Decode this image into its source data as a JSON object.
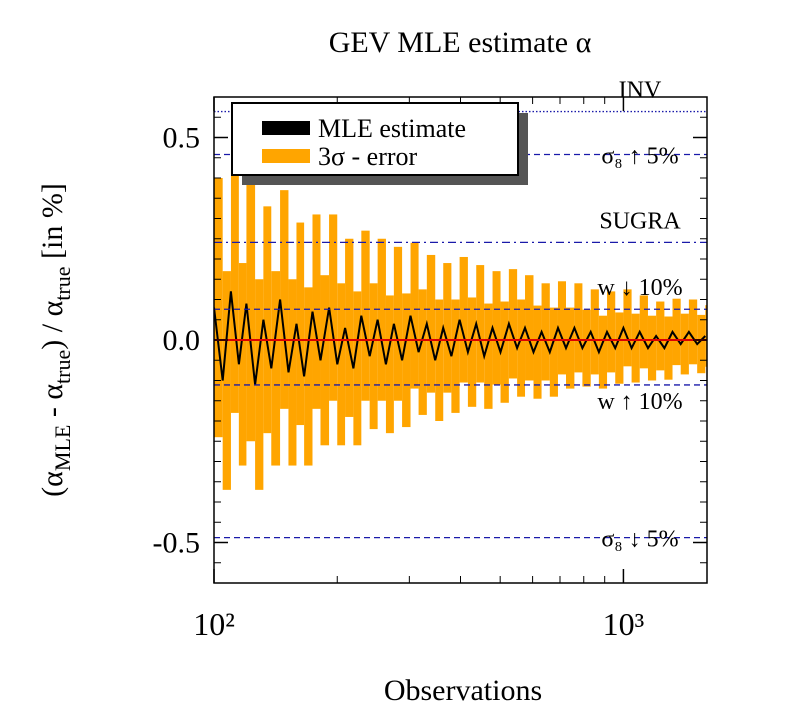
{
  "chart_data": {
    "type": "errorbar",
    "title": "GEV MLE estimate α",
    "xlabel": "Observations",
    "ylabel": [
      {
        "text": "(α"
      },
      {
        "text": "MLE",
        "sub": true
      },
      {
        "text": " - α"
      },
      {
        "text": "true",
        "sub": true
      },
      {
        "text": ") / α"
      },
      {
        "text": "true",
        "sub": true
      },
      {
        "text": " [in %]"
      }
    ],
    "xscale": "log",
    "xlim": [
      100,
      1600
    ],
    "xticks": [
      {
        "value": 100,
        "label": "10²"
      },
      {
        "value": 1000,
        "label": "10³"
      }
    ],
    "xminorticks": [
      200,
      300,
      400,
      500,
      600,
      700,
      800,
      900
    ],
    "ylim": [
      -0.6,
      0.6
    ],
    "yticks": [
      {
        "value": -0.5,
        "label": "-0.5"
      },
      {
        "value": 0,
        "label": "0.0"
      },
      {
        "value": 0.5,
        "label": "0.5"
      }
    ],
    "yminorticks": [
      -0.55,
      -0.45,
      -0.4,
      -0.35,
      -0.3,
      -0.25,
      -0.2,
      -0.15,
      -0.1,
      -0.05,
      0.05,
      0.1,
      0.15,
      0.2,
      0.25,
      0.3,
      0.35,
      0.4,
      0.45,
      0.55
    ],
    "legend": "upper left",
    "x": [
      100,
      105,
      110,
      115,
      120,
      126,
      132,
      138,
      145,
      152,
      159,
      166,
      174,
      182,
      191,
      200,
      209,
      219,
      229,
      240,
      251,
      263,
      275,
      288,
      302,
      316,
      331,
      347,
      363,
      380,
      398,
      417,
      437,
      457,
      479,
      501,
      525,
      550,
      575,
      603,
      631,
      661,
      692,
      724,
      759,
      794,
      832,
      871,
      912,
      955,
      1000,
      1047,
      1096,
      1148,
      1202,
      1259,
      1318,
      1380,
      1445,
      1514,
      1585
    ],
    "series": [
      {
        "name": "MLE estimate",
        "color": "#000000",
        "values": [
          0.08,
          -0.1,
          0.12,
          -0.06,
          0.09,
          -0.11,
          0.05,
          -0.07,
          0.1,
          -0.08,
          0.04,
          -0.09,
          0.07,
          -0.05,
          0.08,
          -0.06,
          0.03,
          -0.07,
          0.06,
          -0.04,
          0.05,
          -0.06,
          0.04,
          -0.05,
          0.06,
          -0.03,
          0.04,
          -0.05,
          0.03,
          -0.04,
          0.05,
          -0.03,
          0.04,
          -0.04,
          0.03,
          -0.03,
          0.04,
          -0.02,
          0.03,
          -0.03,
          0.02,
          -0.03,
          0.03,
          -0.02,
          0.03,
          -0.02,
          0.02,
          -0.03,
          0.02,
          -0.02,
          0.03,
          -0.02,
          0.02,
          -0.02,
          0.01,
          -0.02,
          0.02,
          -0.01,
          0.02,
          -0.01,
          0.01
        ]
      },
      {
        "name": "3σ - error",
        "color": "#ffa500",
        "values": [
          0.32,
          0.27,
          0.3,
          0.25,
          0.34,
          0.26,
          0.28,
          0.24,
          0.27,
          0.23,
          0.25,
          0.22,
          0.24,
          0.21,
          0.23,
          0.2,
          0.22,
          0.19,
          0.21,
          0.18,
          0.2,
          0.17,
          0.19,
          0.165,
          0.18,
          0.155,
          0.17,
          0.15,
          0.16,
          0.14,
          0.155,
          0.135,
          0.145,
          0.13,
          0.14,
          0.125,
          0.135,
          0.12,
          0.13,
          0.115,
          0.12,
          0.11,
          0.115,
          0.1,
          0.11,
          0.095,
          0.105,
          0.09,
          0.1,
          0.088,
          0.095,
          0.085,
          0.09,
          0.08,
          0.085,
          0.078,
          0.082,
          0.075,
          0.08,
          0.072,
          0.076
        ]
      }
    ],
    "zero_line_color": "#dd0000",
    "reference_lines": [
      {
        "label": "INV",
        "value": 0.564,
        "style": "dotted",
        "label_position": "above"
      },
      {
        "label": "σ₈ ↑ 5%",
        "value": 0.458,
        "style": "dashed",
        "label_position": "on"
      },
      {
        "label": "SUGRA",
        "value": 0.241,
        "style": "dashdot",
        "label_position": "above"
      },
      {
        "label": "w ↓ 10%",
        "value": 0.076,
        "style": "dashed",
        "label_position": "above"
      },
      {
        "label": "w ↑ 10%",
        "value": -0.111,
        "style": "dashed",
        "label_position": "below"
      },
      {
        "label": "σ₈ ↓ 5%",
        "value": -0.488,
        "style": "dashed",
        "label_position": "on"
      }
    ],
    "reference_color": "#1a1aaa"
  }
}
